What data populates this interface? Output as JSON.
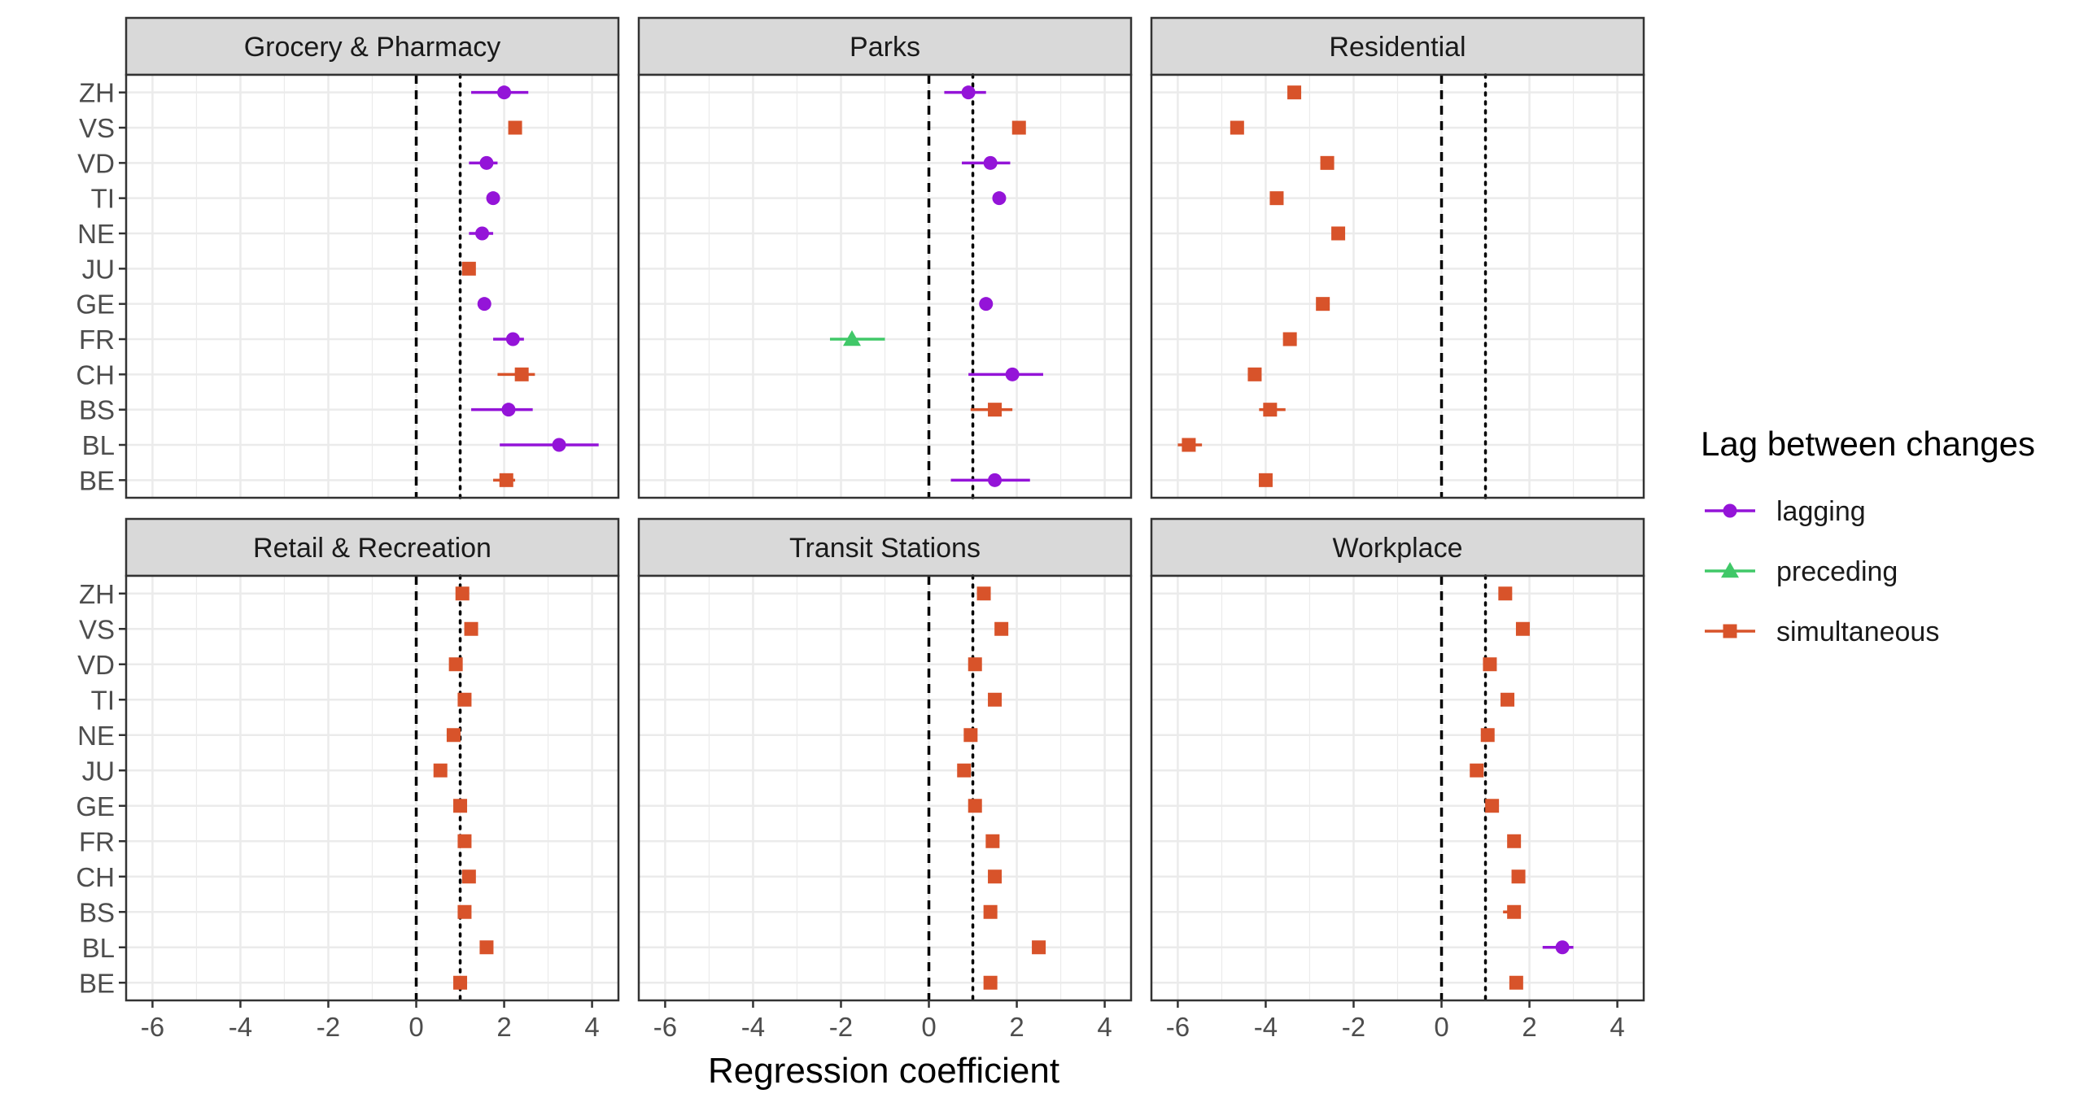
{
  "chart_data": {
    "type": "scatter",
    "subtype": "faceted-dot-and-errorbar",
    "xlabel": "Regression coefficient",
    "ylabel": "",
    "xlim": [
      -6.6,
      4.6
    ],
    "x_ticks": [
      -6,
      -4,
      -2,
      0,
      2,
      4
    ],
    "x_tick_labels": [
      "-6",
      "-4",
      "-2",
      "0",
      "2",
      "4"
    ],
    "categories": [
      "ZH",
      "VS",
      "VD",
      "TI",
      "NE",
      "JU",
      "GE",
      "FR",
      "CH",
      "BS",
      "BL",
      "BE"
    ],
    "reference_lines": [
      {
        "x": 0,
        "style": "dashed"
      },
      {
        "x": 1,
        "style": "dotted"
      }
    ],
    "grid": true,
    "legend": {
      "title": "Lag between changes",
      "position": "right",
      "entries": [
        {
          "key": "lagging",
          "label": "lagging",
          "color": "#9414D8",
          "shape": "circle"
        },
        {
          "key": "preceding",
          "label": "preceding",
          "color": "#40C868",
          "shape": "triangle"
        },
        {
          "key": "simultaneous",
          "label": "simultaneous",
          "color": "#D8532A",
          "shape": "square"
        }
      ]
    },
    "facets": [
      {
        "title": "Grocery & Pharmacy",
        "points": [
          {
            "region": "ZH",
            "lag": "lagging",
            "x": 2.0,
            "lo": 1.25,
            "hi": 2.55
          },
          {
            "region": "VS",
            "lag": "simultaneous",
            "x": 2.25,
            "lo": 2.15,
            "hi": 2.35
          },
          {
            "region": "VD",
            "lag": "lagging",
            "x": 1.6,
            "lo": 1.2,
            "hi": 1.85
          },
          {
            "region": "TI",
            "lag": "lagging",
            "x": 1.75,
            "lo": 1.62,
            "hi": 1.85
          },
          {
            "region": "NE",
            "lag": "lagging",
            "x": 1.5,
            "lo": 1.2,
            "hi": 1.75
          },
          {
            "region": "JU",
            "lag": "simultaneous",
            "x": 1.2,
            "lo": 1.08,
            "hi": 1.32
          },
          {
            "region": "GE",
            "lag": "lagging",
            "x": 1.55,
            "lo": 1.45,
            "hi": 1.65
          },
          {
            "region": "FR",
            "lag": "lagging",
            "x": 2.2,
            "lo": 1.75,
            "hi": 2.45
          },
          {
            "region": "CH",
            "lag": "simultaneous",
            "x": 2.4,
            "lo": 1.85,
            "hi": 2.7
          },
          {
            "region": "BS",
            "lag": "lagging",
            "x": 2.1,
            "lo": 1.25,
            "hi": 2.65
          },
          {
            "region": "BL",
            "lag": "lagging",
            "x": 3.25,
            "lo": 1.9,
            "hi": 4.15
          },
          {
            "region": "BE",
            "lag": "simultaneous",
            "x": 2.05,
            "lo": 1.75,
            "hi": 2.25
          }
        ]
      },
      {
        "title": "Parks",
        "points": [
          {
            "region": "ZH",
            "lag": "lagging",
            "x": 0.9,
            "lo": 0.35,
            "hi": 1.3
          },
          {
            "region": "VS",
            "lag": "simultaneous",
            "x": 2.05,
            "lo": 1.95,
            "hi": 2.15
          },
          {
            "region": "VD",
            "lag": "lagging",
            "x": 1.4,
            "lo": 0.75,
            "hi": 1.85
          },
          {
            "region": "TI",
            "lag": "lagging",
            "x": 1.6,
            "lo": 1.5,
            "hi": 1.7
          },
          {
            "region": "NE",
            "lag": null,
            "x": null,
            "lo": null,
            "hi": null
          },
          {
            "region": "JU",
            "lag": null,
            "x": null,
            "lo": null,
            "hi": null
          },
          {
            "region": "GE",
            "lag": "lagging",
            "x": 1.3,
            "lo": 1.2,
            "hi": 1.4
          },
          {
            "region": "FR",
            "lag": "preceding",
            "x": -1.75,
            "lo": -2.25,
            "hi": -1.0
          },
          {
            "region": "CH",
            "lag": "lagging",
            "x": 1.9,
            "lo": 0.9,
            "hi": 2.6
          },
          {
            "region": "BS",
            "lag": "simultaneous",
            "x": 1.5,
            "lo": 0.95,
            "hi": 1.9
          },
          {
            "region": "BL",
            "lag": null,
            "x": null,
            "lo": null,
            "hi": null
          },
          {
            "region": "BE",
            "lag": "lagging",
            "x": 1.5,
            "lo": 0.5,
            "hi": 2.3
          }
        ]
      },
      {
        "title": "Residential",
        "points": [
          {
            "region": "ZH",
            "lag": "simultaneous",
            "x": -3.35,
            "lo": -3.45,
            "hi": -3.25
          },
          {
            "region": "VS",
            "lag": "simultaneous",
            "x": -4.65,
            "lo": -4.75,
            "hi": -4.55
          },
          {
            "region": "VD",
            "lag": "simultaneous",
            "x": -2.6,
            "lo": -2.7,
            "hi": -2.5
          },
          {
            "region": "TI",
            "lag": "simultaneous",
            "x": -3.75,
            "lo": -3.85,
            "hi": -3.65
          },
          {
            "region": "NE",
            "lag": "simultaneous",
            "x": -2.35,
            "lo": -2.45,
            "hi": -2.25
          },
          {
            "region": "JU",
            "lag": null,
            "x": null,
            "lo": null,
            "hi": null
          },
          {
            "region": "GE",
            "lag": "simultaneous",
            "x": -2.7,
            "lo": -2.8,
            "hi": -2.6
          },
          {
            "region": "FR",
            "lag": "simultaneous",
            "x": -3.45,
            "lo": -3.55,
            "hi": -3.35
          },
          {
            "region": "CH",
            "lag": "simultaneous",
            "x": -4.25,
            "lo": -4.35,
            "hi": -4.15
          },
          {
            "region": "BS",
            "lag": "simultaneous",
            "x": -3.9,
            "lo": -4.15,
            "hi": -3.55
          },
          {
            "region": "BL",
            "lag": "simultaneous",
            "x": -5.75,
            "lo": -6.0,
            "hi": -5.45
          },
          {
            "region": "BE",
            "lag": "simultaneous",
            "x": -4.0,
            "lo": -4.1,
            "hi": -3.9
          }
        ]
      },
      {
        "title": "Retail & Recreation",
        "points": [
          {
            "region": "ZH",
            "lag": "simultaneous",
            "x": 1.05,
            "lo": 0.95,
            "hi": 1.15
          },
          {
            "region": "VS",
            "lag": "simultaneous",
            "x": 1.25,
            "lo": 1.15,
            "hi": 1.35
          },
          {
            "region": "VD",
            "lag": "simultaneous",
            "x": 0.9,
            "lo": 0.8,
            "hi": 1.0
          },
          {
            "region": "TI",
            "lag": "simultaneous",
            "x": 1.1,
            "lo": 1.0,
            "hi": 1.2
          },
          {
            "region": "NE",
            "lag": "simultaneous",
            "x": 0.85,
            "lo": 0.75,
            "hi": 0.95
          },
          {
            "region": "JU",
            "lag": "simultaneous",
            "x": 0.55,
            "lo": 0.45,
            "hi": 0.65
          },
          {
            "region": "GE",
            "lag": "simultaneous",
            "x": 1.0,
            "lo": 0.9,
            "hi": 1.1
          },
          {
            "region": "FR",
            "lag": "simultaneous",
            "x": 1.1,
            "lo": 1.0,
            "hi": 1.2
          },
          {
            "region": "CH",
            "lag": "simultaneous",
            "x": 1.2,
            "lo": 1.1,
            "hi": 1.3
          },
          {
            "region": "BS",
            "lag": "simultaneous",
            "x": 1.1,
            "lo": 1.0,
            "hi": 1.2
          },
          {
            "region": "BL",
            "lag": "simultaneous",
            "x": 1.6,
            "lo": 1.5,
            "hi": 1.7
          },
          {
            "region": "BE",
            "lag": "simultaneous",
            "x": 1.0,
            "lo": 0.9,
            "hi": 1.1
          }
        ]
      },
      {
        "title": "Transit Stations",
        "points": [
          {
            "region": "ZH",
            "lag": "simultaneous",
            "x": 1.25,
            "lo": 1.15,
            "hi": 1.35
          },
          {
            "region": "VS",
            "lag": "simultaneous",
            "x": 1.65,
            "lo": 1.55,
            "hi": 1.75
          },
          {
            "region": "VD",
            "lag": "simultaneous",
            "x": 1.05,
            "lo": 0.95,
            "hi": 1.15
          },
          {
            "region": "TI",
            "lag": "simultaneous",
            "x": 1.5,
            "lo": 1.4,
            "hi": 1.6
          },
          {
            "region": "NE",
            "lag": "simultaneous",
            "x": 0.95,
            "lo": 0.85,
            "hi": 1.05
          },
          {
            "region": "JU",
            "lag": "simultaneous",
            "x": 0.8,
            "lo": 0.7,
            "hi": 0.9
          },
          {
            "region": "GE",
            "lag": "simultaneous",
            "x": 1.05,
            "lo": 0.95,
            "hi": 1.15
          },
          {
            "region": "FR",
            "lag": "simultaneous",
            "x": 1.45,
            "lo": 1.35,
            "hi": 1.55
          },
          {
            "region": "CH",
            "lag": "simultaneous",
            "x": 1.5,
            "lo": 1.4,
            "hi": 1.6
          },
          {
            "region": "BS",
            "lag": "simultaneous",
            "x": 1.4,
            "lo": 1.3,
            "hi": 1.5
          },
          {
            "region": "BL",
            "lag": "simultaneous",
            "x": 2.5,
            "lo": 2.35,
            "hi": 2.6
          },
          {
            "region": "BE",
            "lag": "simultaneous",
            "x": 1.4,
            "lo": 1.3,
            "hi": 1.5
          }
        ]
      },
      {
        "title": "Workplace",
        "points": [
          {
            "region": "ZH",
            "lag": "simultaneous",
            "x": 1.45,
            "lo": 1.35,
            "hi": 1.55
          },
          {
            "region": "VS",
            "lag": "simultaneous",
            "x": 1.85,
            "lo": 1.75,
            "hi": 1.95
          },
          {
            "region": "VD",
            "lag": "simultaneous",
            "x": 1.1,
            "lo": 1.0,
            "hi": 1.2
          },
          {
            "region": "TI",
            "lag": "simultaneous",
            "x": 1.5,
            "lo": 1.4,
            "hi": 1.6
          },
          {
            "region": "NE",
            "lag": "simultaneous",
            "x": 1.05,
            "lo": 0.95,
            "hi": 1.15
          },
          {
            "region": "JU",
            "lag": "simultaneous",
            "x": 0.8,
            "lo": 0.7,
            "hi": 0.9
          },
          {
            "region": "GE",
            "lag": "simultaneous",
            "x": 1.15,
            "lo": 1.05,
            "hi": 1.25
          },
          {
            "region": "FR",
            "lag": "simultaneous",
            "x": 1.65,
            "lo": 1.55,
            "hi": 1.75
          },
          {
            "region": "CH",
            "lag": "simultaneous",
            "x": 1.75,
            "lo": 1.65,
            "hi": 1.85
          },
          {
            "region": "BS",
            "lag": "simultaneous",
            "x": 1.65,
            "lo": 1.4,
            "hi": 1.8
          },
          {
            "region": "BL",
            "lag": "lagging",
            "x": 2.75,
            "lo": 2.3,
            "hi": 3.0
          },
          {
            "region": "BE",
            "lag": "simultaneous",
            "x": 1.7,
            "lo": 1.6,
            "hi": 1.8
          }
        ]
      }
    ]
  }
}
